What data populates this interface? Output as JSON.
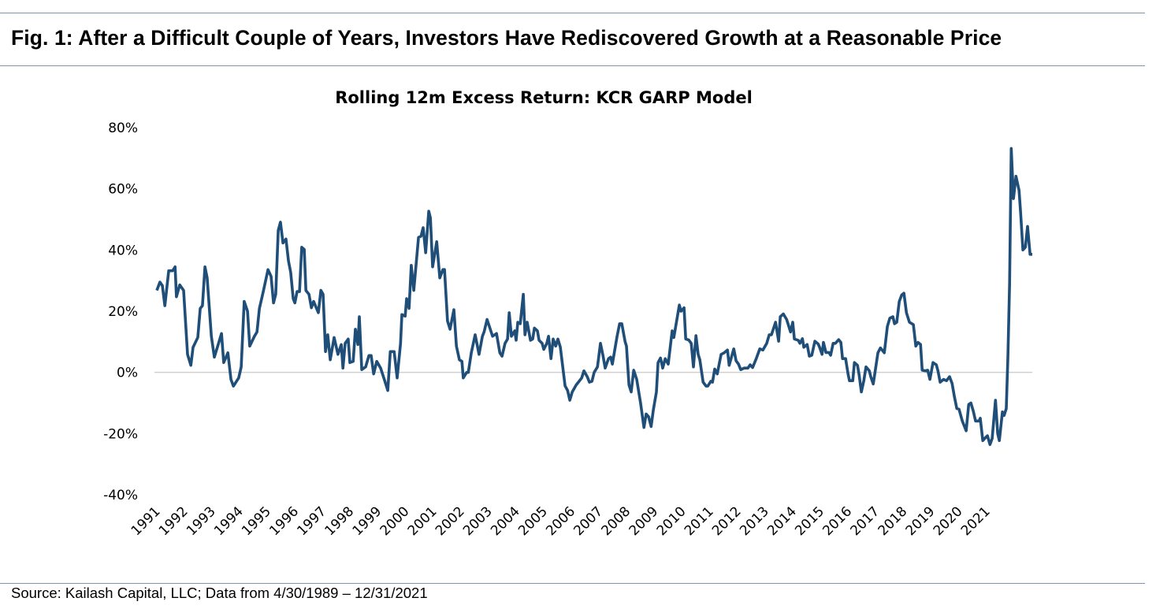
{
  "figure": {
    "title": "Fig. 1: After a Difficult Couple of Years, Investors Have Rediscovered Growth at a Reasonable Price",
    "source": "Source: Kailash Capital, LLC; Data from 4/30/1989 – 12/31/2021"
  },
  "colors": {
    "line": "#1f4e79",
    "zero_line": "#d0d0d0",
    "rules": "#7f94ad"
  },
  "chart_data": {
    "type": "line",
    "title": "Rolling 12m Excess Return: KCR GARP Model",
    "xlabel": "",
    "ylabel": "",
    "ylim": [
      -40,
      80
    ],
    "y_ticks": [
      80,
      60,
      40,
      20,
      0,
      -20,
      -40
    ],
    "y_tick_labels": [
      "80%",
      "60%",
      "40%",
      "20%",
      "0%",
      "-20%",
      "-40%"
    ],
    "x_tick_labels": [
      "1991",
      "1992",
      "1993",
      "1994",
      "1995",
      "1996",
      "1997",
      "1998",
      "1999",
      "2000",
      "2001",
      "2002",
      "2003",
      "2004",
      "2005",
      "2006",
      "2007",
      "2008",
      "2009",
      "2010",
      "2011",
      "2012",
      "2013",
      "2014",
      "2015",
      "2016",
      "2017",
      "2018",
      "2019",
      "2020",
      "2021"
    ],
    "grid": "zero line only",
    "legend": "none",
    "series": [
      {
        "x": [
          1990.3,
          1990.41,
          1990.5,
          1990.59,
          1990.73,
          1990.87,
          1990.96,
          1991.01,
          1991.13,
          1991.27,
          1991.41,
          1991.53,
          1991.61,
          1991.78,
          1991.87,
          1991.95,
          1992.04,
          1992.12,
          1992.27,
          1992.38,
          1992.52,
          1992.64,
          1992.72,
          1992.87,
          1992.98,
          1993.07,
          1993.26,
          1993.35,
          1993.46,
          1993.58,
          1993.66,
          1993.83,
          1993.92,
          1994.01,
          1994.15,
          1994.32,
          1994.43,
          1994.52,
          1994.6,
          1994.69,
          1994.77,
          1994.86,
          1994.97,
          1995.06,
          1995.14,
          1995.23,
          1995.29,
          1995.37,
          1995.46,
          1995.54,
          1995.63,
          1995.69,
          1995.8,
          1995.89,
          1995.97,
          1996.14,
          1996.23,
          1996.31,
          1996.4,
          1996.48,
          1996.57,
          1996.71,
          1996.85,
          1996.97,
          1997.03,
          1997.11,
          1997.22,
          1997.28,
          1997.4,
          1997.48,
          1997.57,
          1997.62,
          1997.71,
          1997.85,
          1997.97,
          1998.05,
          1998.14,
          1998.25,
          1998.39,
          1998.54,
          1998.65,
          1998.74,
          1998.88,
          1998.99,
          1999.11,
          1999.16,
          1999.28,
          1999.33,
          1999.42,
          1999.5,
          1999.59,
          1999.76,
          1999.85,
          1999.93,
          2000.02,
          2000.13,
          2000.19,
          2000.27,
          2000.42,
          2000.53,
          2000.64,
          2000.7,
          2000.81,
          2000.9,
          2001.04,
          2001.13,
          2001.24,
          2001.33,
          2001.38,
          2001.5,
          2001.56,
          2001.67,
          2001.81,
          2001.95,
          2002.07,
          2002.13,
          2002.24,
          2002.44,
          2002.58,
          2002.7,
          2002.78,
          2002.89,
          2002.98,
          2003.04,
          2003.12,
          2003.24,
          2003.29,
          2003.35,
          2003.44,
          2003.55,
          2003.61,
          2003.69,
          2003.81,
          2003.89,
          2003.95,
          2004.06,
          2004.12,
          2004.23,
          2004.29,
          2004.4,
          2004.46,
          2004.55,
          2004.63,
          2004.72,
          2004.8,
          2004.89,
          2005.06,
          2005.15,
          2005.23,
          2005.32,
          2005.46,
          2005.54,
          2005.66,
          2005.74,
          2005.86,
          2005.94,
          2006.03,
          2006.11,
          2006.23,
          2006.34,
          2006.43,
          2006.51,
          2006.63,
          2006.71,
          2006.77,
          2006.94,
          2007.03,
          2007.11,
          2007.23,
          2007.28,
          2007.37,
          2007.45,
          2007.54,
          2007.65,
          2007.79,
          2007.91,
          2007.99,
          2008.08,
          2008.17,
          2008.25,
          2008.36,
          2008.42,
          2008.51,
          2008.59,
          2008.68,
          2008.79,
          2008.93,
          2008.99,
          2009.19,
          2009.25,
          2009.36,
          2009.42,
          2009.53,
          2009.62,
          2009.7,
          2009.79,
          2009.87,
          2009.93,
          2010.05,
          2010.16,
          2010.22,
          2010.33,
          2010.39,
          2010.47,
          2010.56,
          2010.7,
          2010.81,
          2010.93,
          2010.99,
          2011.16,
          2011.24,
          2011.33,
          2011.41,
          2011.53,
          2011.67,
          2011.75,
          2011.84,
          2011.98,
          2012.1,
          2012.21,
          2012.35,
          2012.44,
          2012.52,
          2012.67,
          2012.78,
          2012.84,
          2012.95,
          2013.07,
          2013.21,
          2013.29,
          2013.35,
          2013.49,
          2013.55,
          2013.64,
          2013.69,
          2013.81,
          2013.89,
          2013.98,
          2014.09,
          2014.21,
          2014.26,
          2014.35,
          2014.4,
          2014.49,
          2014.6,
          2014.66,
          2014.75,
          2014.83,
          2014.95,
          2015.03,
          2015.09,
          2015.2,
          2015.29,
          2015.34,
          2015.46,
          2015.52,
          2015.63,
          2015.69,
          2015.77,
          2015.86,
          2015.94,
          2016.06,
          2016.11,
          2016.2,
          2016.37,
          2016.46,
          2016.6,
          2016.71,
          2016.8,
          2016.91,
          2016.97,
          2017.05,
          2017.14,
          2017.23,
          2017.31,
          2017.4,
          2017.51,
          2017.6,
          2017.65,
          2017.74,
          2017.82,
          2017.91,
          2017.97,
          2018.08,
          2018.17,
          2018.25,
          2018.36,
          2018.48,
          2018.54,
          2018.62,
          2018.74,
          2018.85,
          2018.96,
          2019.05,
          2019.13,
          2019.22,
          2019.3,
          2019.42,
          2019.56,
          2019.65,
          2019.73,
          2019.82,
          2019.9,
          2020.02,
          2020.07,
          2020.16,
          2020.25,
          2020.33,
          2020.42,
          2020.5,
          2020.62,
          2020.7,
          2020.76,
          2020.87,
          2020.93,
          2021.01,
          2021.07,
          2021.13,
          2021.19,
          2021.27,
          2021.36,
          2021.47,
          2021.53,
          2021.61,
          2021.7,
          2021.78,
          2021.87,
          2021.95
        ],
        "values": [
          26.8,
          29.5,
          28.4,
          21.8,
          33.2,
          33.2,
          34.5,
          24.7,
          28.6,
          26.8,
          5.9,
          2.3,
          8.2,
          11.4,
          20.9,
          21.8,
          34.5,
          30.9,
          11.8,
          5.0,
          9.1,
          12.7,
          3.2,
          6.4,
          -2.3,
          -4.5,
          -1.8,
          1.8,
          23.2,
          20.0,
          8.6,
          11.8,
          13.2,
          20.9,
          26.4,
          33.6,
          31.4,
          22.7,
          25.5,
          46.4,
          49.1,
          42.3,
          43.6,
          36.4,
          32.7,
          24.1,
          22.7,
          26.4,
          26.4,
          40.9,
          40.2,
          26.8,
          25.5,
          21.1,
          23.2,
          19.5,
          26.8,
          25.5,
          6.8,
          12.3,
          4.1,
          11.4,
          5.9,
          9.1,
          1.4,
          9.5,
          10.9,
          3.2,
          3.6,
          14.1,
          9.1,
          18.2,
          0.9,
          1.8,
          5.5,
          5.5,
          -0.5,
          3.6,
          1.4,
          -2.7,
          -5.9,
          6.8,
          6.8,
          -1.8,
          9.5,
          18.9,
          18.4,
          24.1,
          20.9,
          35.0,
          26.8,
          44.1,
          44.5,
          47.3,
          39.1,
          52.7,
          50.5,
          34.5,
          42.7,
          30.9,
          33.6,
          33.6,
          16.8,
          14.1,
          20.5,
          8.6,
          4.1,
          3.6,
          -1.8,
          0,
          0,
          6.4,
          12.3,
          5.9,
          11.8,
          13.2,
          17.3,
          11.8,
          12.7,
          6.4,
          5.3,
          9.5,
          10.9,
          19.5,
          11.8,
          13.6,
          10.5,
          16.4,
          15.9,
          25.5,
          12.3,
          16.4,
          10.5,
          10.9,
          14.5,
          13.6,
          10.5,
          9.5,
          7.5,
          9.5,
          11.8,
          4.5,
          10.9,
          8.6,
          10.9,
          8.2,
          -4.4,
          -5.9,
          -9.1,
          -6.4,
          -4.1,
          -3.2,
          -1.8,
          0.5,
          -1.4,
          -3.2,
          -2.9,
          0,
          1.8,
          9.5,
          5.5,
          1.4,
          4.5,
          5.0,
          2.7,
          11.8,
          15.9,
          15.9,
          10.0,
          8.6,
          -4.1,
          -6.4,
          0.7,
          -2.3,
          -10.0,
          -18.0,
          -13.6,
          -14.5,
          -17.7,
          -12.3,
          -6.4,
          3.2,
          4.7,
          1.4,
          4.5,
          2.7,
          13.6,
          11.4,
          22.0,
          20.0,
          21.1,
          10.9,
          10.6,
          9.5,
          1.8,
          12.0,
          5.9,
          4.1,
          -3.2,
          -4.5,
          -4.5,
          -2.9,
          -3.2,
          1.1,
          -0.5,
          5.9,
          6.4,
          7.3,
          2.3,
          7.7,
          3.8,
          2.7,
          0.9,
          1.4,
          1.4,
          2.5,
          1.6,
          4.7,
          7.7,
          7.3,
          9.5,
          12.3,
          12.3,
          16.4,
          10.2,
          18.2,
          19.1,
          17.3,
          13.2,
          16.4,
          10.9,
          10.5,
          9.5,
          11.0,
          8.2,
          9.1,
          5.3,
          5.6,
          10.2,
          9.3,
          8.2,
          5.9,
          9.8,
          6.5,
          6.5,
          5.6,
          9.5,
          9.5,
          10.7,
          9.8,
          4.5,
          4.5,
          -0.5,
          -2.7,
          -2.7,
          3.2,
          2.3,
          -0.9,
          -6.4,
          -2.7,
          1.8,
          0.5,
          -1.4,
          -3.8,
          6.4,
          8.0,
          6.4,
          15.0,
          17.7,
          18.2,
          15.9,
          16.4,
          23.2,
          25.3,
          25.9,
          19.5,
          16.4,
          15.9,
          15.6,
          8.6,
          9.8,
          9.1,
          0.7,
          0.5,
          0.7,
          -2.3,
          3.2,
          2.5,
          0.5,
          -3.2,
          -2.3,
          -2.7,
          -1.4,
          -3.6,
          -7.7,
          -11.8,
          -12.0,
          -15.9,
          -19.1,
          -10.5,
          -10.0,
          -12.7,
          -15.9,
          -15.9,
          -15.0,
          -22.3,
          -21.4,
          -20.7,
          -23.6,
          -21.6,
          -9.1,
          -20.0,
          -22.3,
          -12.9,
          -14.1,
          -11.8,
          5.5,
          29.1,
          73.2,
          56.8,
          64.1,
          59.5,
          51.8,
          40.0,
          40.9,
          47.7,
          38.6,
          38.6
        ]
      }
    ]
  }
}
